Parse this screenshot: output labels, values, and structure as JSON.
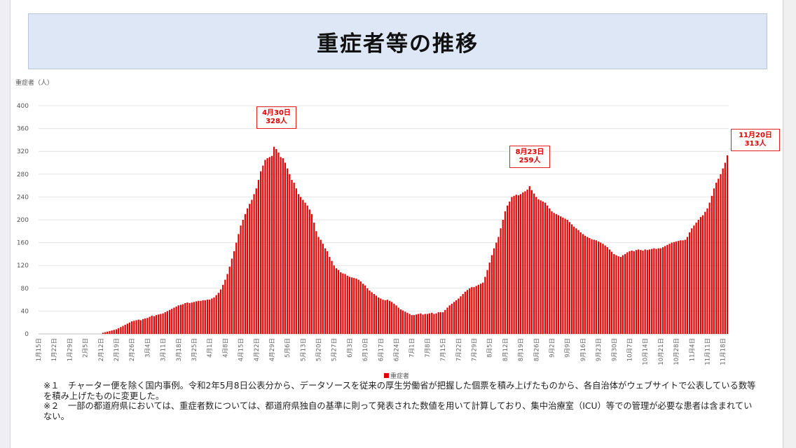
{
  "title": "重症者等の推移",
  "chart_data": {
    "type": "bar",
    "title": "重症者等の推移",
    "ylabel": "重症者（人）",
    "xlabel": "",
    "ylim": [
      0,
      400
    ],
    "yticks": [
      0,
      40,
      80,
      120,
      160,
      200,
      240,
      280,
      320,
      360,
      400
    ],
    "grid": true,
    "start_date": "1月15日",
    "end_date": "11月20日",
    "x_tick_labels": [
      "1月15日",
      "1月22日",
      "1月29日",
      "2月5日",
      "2月12日",
      "2月19日",
      "2月26日",
      "3月4日",
      "3月11日",
      "3月18日",
      "3月25日",
      "4月1日",
      "4月8日",
      "4月15日",
      "4月22日",
      "4月29日",
      "5月6日",
      "5月13日",
      "5月20日",
      "5月27日",
      "6月3日",
      "6月10日",
      "6月17日",
      "6月24日",
      "7月1日",
      "7月8日",
      "7月15日",
      "7月22日",
      "7月29日",
      "8月5日",
      "8月12日",
      "8月19日",
      "8月26日",
      "9月2日",
      "9月9日",
      "9月16日",
      "9月23日",
      "9月30日",
      "10月7日",
      "10月14日",
      "10月21日",
      "10月28日",
      "11月4日",
      "11月11日",
      "11月18日"
    ],
    "legend": {
      "label": "重症者",
      "placement": "bottom"
    },
    "color": "#e00000",
    "series": [
      {
        "name": "重症者",
        "values": [
          0,
          0,
          0,
          0,
          0,
          0,
          0,
          0,
          0,
          0,
          0,
          0,
          0,
          0,
          0,
          0,
          0,
          0,
          0,
          0,
          0,
          0,
          0,
          0,
          0,
          0,
          0,
          0,
          0,
          2,
          3,
          4,
          5,
          6,
          7,
          8,
          10,
          12,
          14,
          16,
          18,
          20,
          22,
          23,
          24,
          25,
          24,
          26,
          27,
          28,
          30,
          32,
          31,
          33,
          34,
          35,
          36,
          38,
          40,
          42,
          44,
          46,
          48,
          50,
          51,
          52,
          54,
          55,
          54,
          55,
          56,
          57,
          58,
          58,
          59,
          59,
          60,
          60,
          62,
          64,
          68,
          72,
          78,
          86,
          95,
          105,
          118,
          132,
          145,
          160,
          175,
          190,
          200,
          210,
          220,
          228,
          235,
          245,
          255,
          270,
          285,
          295,
          305,
          308,
          310,
          312,
          328,
          324,
          318,
          310,
          308,
          300,
          290,
          280,
          270,
          265,
          255,
          245,
          240,
          235,
          230,
          225,
          218,
          210,
          195,
          180,
          170,
          165,
          158,
          150,
          145,
          135,
          128,
          120,
          115,
          112,
          108,
          106,
          105,
          102,
          100,
          99,
          98,
          97,
          95,
          92,
          88,
          85,
          80,
          76,
          73,
          70,
          67,
          64,
          62,
          60,
          59,
          60,
          58,
          56,
          53,
          50,
          46,
          43,
          41,
          39,
          37,
          35,
          33,
          33,
          34,
          35,
          36,
          34,
          35,
          35,
          36,
          37,
          35,
          36,
          38,
          38,
          38,
          42,
          46,
          50,
          53,
          56,
          59,
          62,
          66,
          70,
          74,
          77,
          80,
          82,
          82,
          84,
          86,
          88,
          90,
          100,
          112,
          125,
          138,
          150,
          160,
          170,
          185,
          200,
          215,
          225,
          232,
          240,
          242,
          244,
          243,
          245,
          248,
          250,
          253,
          259,
          252,
          246,
          240,
          236,
          234,
          232,
          230,
          225,
          220,
          215,
          212,
          210,
          208,
          206,
          204,
          202,
          200,
          196,
          192,
          188,
          185,
          182,
          178,
          175,
          172,
          170,
          168,
          166,
          165,
          164,
          162,
          160,
          158,
          155,
          152,
          148,
          144,
          140,
          138,
          136,
          135,
          138,
          140,
          143,
          145,
          146,
          145,
          147,
          148,
          147,
          146,
          148,
          147,
          148,
          149,
          150,
          149,
          150,
          150,
          152,
          154,
          156,
          158,
          160,
          161,
          162,
          163,
          164,
          164,
          165,
          170,
          178,
          185,
          190,
          195,
          200,
          205,
          208,
          214,
          220,
          230,
          242,
          255,
          265,
          272,
          280,
          290,
          300,
          313
        ]
      }
    ],
    "annotations": [
      {
        "date": "4月30日",
        "value_label": "328人",
        "value": 328
      },
      {
        "date": "8月23日",
        "value_label": "259人",
        "value": 259
      },
      {
        "date": "11月20日",
        "value_label": "313人",
        "value": 313
      }
    ]
  },
  "notes": [
    "※１　チャーター便を除く国内事例。令和2年5月8日公表分から、データソースを従来の厚生労働省が把握した個票を積み上げたものから、各自治体がウェブサイトで公表している数等を積み上げたものに変更した。",
    "※２　一部の都道府県においては、重症者数については、都道府県独自の基準に則って発表された数値を用いて計算しており、集中治療室（ICU）等での管理が必要な患者は含まれていない。"
  ]
}
